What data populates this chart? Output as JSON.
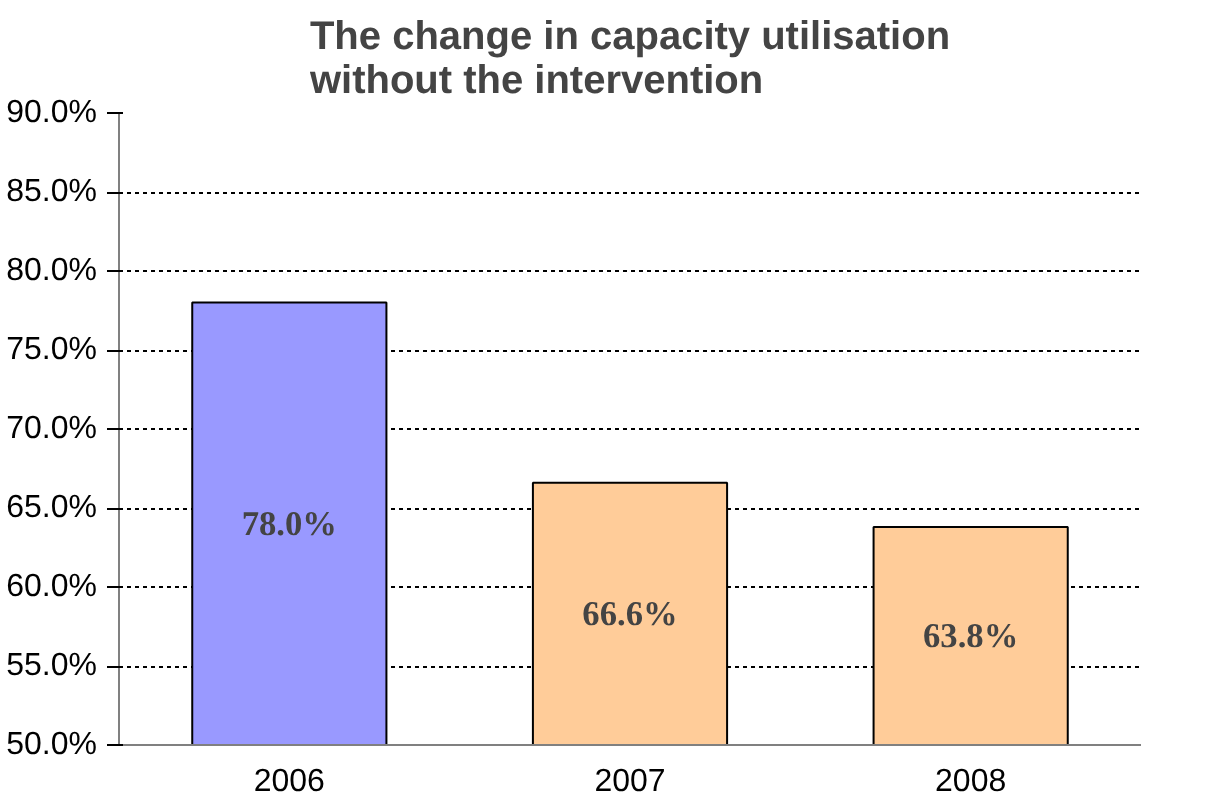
{
  "chart_data": {
    "type": "bar",
    "title": "The change in capacity utilisation\nwithout the intervention",
    "categories": [
      "2006",
      "2007",
      "2008"
    ],
    "values": [
      78.0,
      66.6,
      63.8
    ],
    "colors": [
      "#9999ff",
      "#ffcc99",
      "#ffcc99"
    ],
    "value_labels": [
      "78.0%",
      "66.6%",
      "63.8%"
    ],
    "ylim": [
      50,
      90
    ],
    "yticks": [
      {
        "value": 50,
        "label": "50.0%"
      },
      {
        "value": 55,
        "label": "55.0%"
      },
      {
        "value": 60,
        "label": "60.0%"
      },
      {
        "value": 65,
        "label": "65.0%"
      },
      {
        "value": 70,
        "label": "70.0%"
      },
      {
        "value": 75,
        "label": "75.0%"
      },
      {
        "value": 80,
        "label": "80.0%"
      },
      {
        "value": 85,
        "label": "85.0%"
      },
      {
        "value": 90,
        "label": "90.0%"
      }
    ],
    "grid": "y"
  }
}
